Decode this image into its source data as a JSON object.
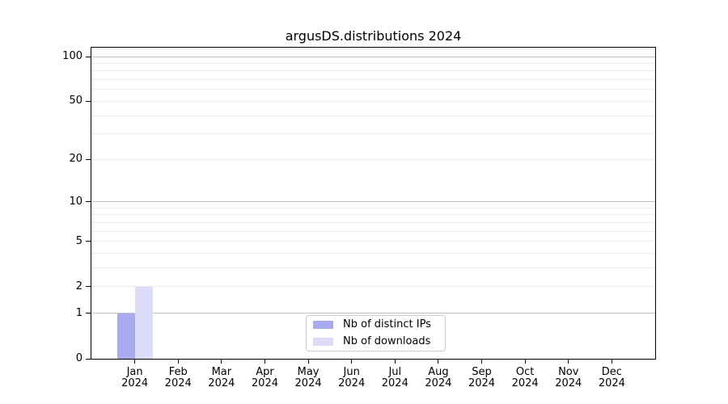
{
  "title": "argusDS.distributions 2024",
  "legend": {
    "position": "lower center",
    "items": [
      {
        "label": "Nb of distinct IPs",
        "color": "#aaaaf0"
      },
      {
        "label": "Nb of downloads",
        "color": "#dcdcf8"
      }
    ]
  },
  "chart_data": {
    "type": "bar",
    "title": "argusDS.distributions 2024",
    "categories": [
      "Jan 2024",
      "Feb 2024",
      "Mar 2024",
      "Apr 2024",
      "May 2024",
      "Jun 2024",
      "Jul 2024",
      "Aug 2024",
      "Sep 2024",
      "Oct 2024",
      "Nov 2024",
      "Dec 2024"
    ],
    "months": [
      "Jan",
      "Feb",
      "Mar",
      "Apr",
      "May",
      "Jun",
      "Jul",
      "Aug",
      "Sep",
      "Oct",
      "Nov",
      "Dec"
    ],
    "year": "2024",
    "series": [
      {
        "name": "Nb of distinct IPs",
        "color": "#aaaaf0",
        "values": [
          1,
          0,
          0,
          0,
          0,
          0,
          0,
          0,
          0,
          0,
          0,
          0
        ]
      },
      {
        "name": "Nb of downloads",
        "color": "#dcdcf8",
        "values": [
          2,
          0,
          0,
          0,
          0,
          0,
          0,
          0,
          0,
          0,
          0,
          0
        ]
      }
    ],
    "xlabel": "",
    "ylabel": "",
    "y_axis": {
      "scale": "log(1+y)",
      "tick_values": [
        0,
        1,
        2,
        5,
        10,
        20,
        50,
        100
      ],
      "tick_labels": [
        "0",
        "1",
        "2",
        "5",
        "10",
        "20",
        "50",
        "100"
      ],
      "major_grid_values": [
        1,
        10,
        100
      ],
      "minor_grid_values": [
        2,
        3,
        4,
        5,
        6,
        7,
        8,
        9,
        20,
        30,
        40,
        50,
        60,
        70,
        80,
        90
      ],
      "ylim": [
        0,
        115
      ]
    },
    "grid": true,
    "legend_position": "lower center"
  },
  "colors": {
    "background": "#ffffff",
    "spine": "#000000",
    "major_grid": "#c2c2c2",
    "minor_grid": "#ebebeb",
    "bar_distinct_ips": "#aaaaf0",
    "bar_downloads": "#dcdcf8",
    "legend_border": "#cccccc"
  }
}
